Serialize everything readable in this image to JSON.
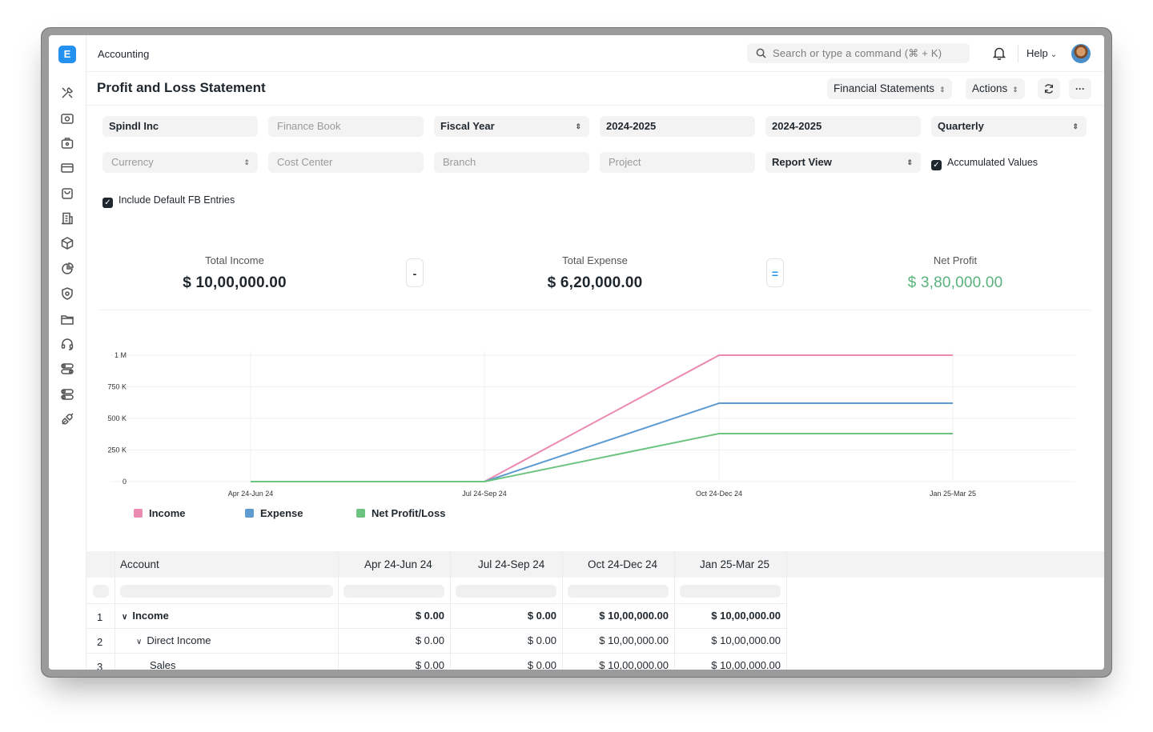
{
  "app": {
    "logo_letter": "E",
    "breadcrumb": "Accounting",
    "search_placeholder": "Search or type a command (⌘ + K)",
    "help_label": "Help"
  },
  "sidebar": {
    "icons": [
      "tools-icon",
      "cash-register-icon",
      "briefcase-icon",
      "credit-card-icon",
      "shopping-bag-icon",
      "building-icon",
      "package-icon",
      "pie-chart-icon",
      "shield-icon",
      "folder-icon",
      "headset-icon",
      "toggle-icon",
      "toggle-icon",
      "integration-icon"
    ]
  },
  "header": {
    "title": "Profit and Loss Statement",
    "financial_statements_label": "Financial Statements",
    "actions_label": "Actions",
    "more_label": "···"
  },
  "filters": {
    "company": "Spindl Inc",
    "finance_book": "Finance Book",
    "based_on": "Fiscal Year",
    "from_year": "2024-2025",
    "to_year": "2024-2025",
    "periodicity": "Quarterly",
    "currency": "Currency",
    "cost_center": "Cost Center",
    "branch": "Branch",
    "project": "Project",
    "report_view": "Report View",
    "accumulated_values": "Accumulated Values",
    "include_default_fb": "Include Default FB Entries"
  },
  "summary": {
    "income_label": "Total Income",
    "income_value": "$ 10,00,000.00",
    "minus": "-",
    "expense_label": "Total Expense",
    "expense_value": "$ 6,20,000.00",
    "equals": "=",
    "profit_label": "Net Profit",
    "profit_value": "$ 3,80,000.00"
  },
  "chart_data": {
    "type": "line",
    "categories": [
      "Apr 24-Jun 24",
      "Jul 24-Sep 24",
      "Oct 24-Dec 24",
      "Jan 25-Mar 25"
    ],
    "y_ticks": [
      "0",
      "250 K",
      "500 K",
      "750 K",
      "1 M"
    ],
    "ylim": [
      0,
      1000000
    ],
    "series": [
      {
        "name": "Income",
        "color": "#ec8bb2",
        "values": [
          0,
          0,
          1000000,
          1000000
        ]
      },
      {
        "name": "Expense",
        "color": "#5e9bd1",
        "values": [
          0,
          0,
          620000,
          620000
        ]
      },
      {
        "name": "Net Profit/Loss",
        "color": "#6cc480",
        "values": [
          0,
          0,
          380000,
          380000
        ]
      }
    ]
  },
  "legend": {
    "income": "Income",
    "expense": "Expense",
    "net": "Net Profit/Loss"
  },
  "table": {
    "headers": [
      "Account",
      "Apr 24-Jun 24",
      "Jul 24-Sep 24",
      "Oct 24-Dec 24",
      "Jan 25-Mar 25"
    ],
    "rows": [
      {
        "idx": "1",
        "account": "Income",
        "values": [
          "$ 0.00",
          "$ 0.00",
          "$ 10,00,000.00",
          "$ 10,00,000.00"
        ]
      },
      {
        "idx": "2",
        "account": "Direct Income",
        "values": [
          "$ 0.00",
          "$ 0.00",
          "$ 10,00,000.00",
          "$ 10,00,000.00"
        ]
      },
      {
        "idx": "3",
        "account": "Sales",
        "values": [
          "$ 0.00",
          "$ 0.00",
          "$ 10,00,000.00",
          "$ 10,00,000.00"
        ]
      }
    ]
  }
}
